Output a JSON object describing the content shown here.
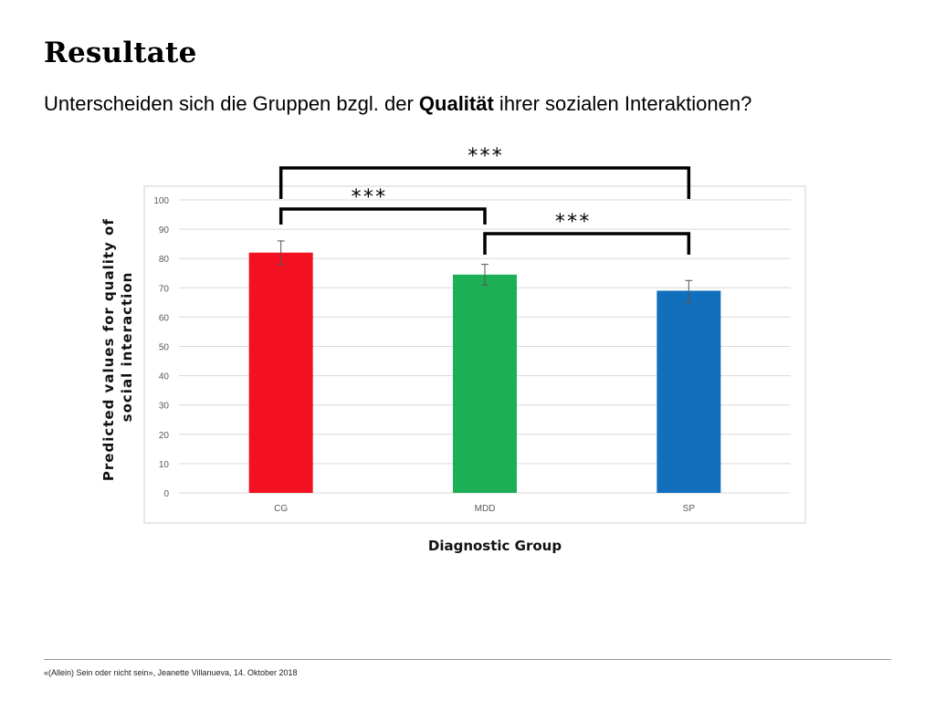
{
  "slide": {
    "title": "Resultate",
    "subtitle_prefix": "Unterscheiden sich die Gruppen bzgl. der ",
    "subtitle_bold": "Qualität",
    "subtitle_suffix": " ihrer sozialen Interaktionen?",
    "footer": "«(Allein) Sein oder nicht sein», Jeanette Villanueva, 14. Oktober 2018"
  },
  "chart_data": {
    "type": "bar",
    "title": "",
    "xlabel": "Diagnostic Group",
    "ylabel_lines": [
      "Predicted values for quality of",
      "social interaction"
    ],
    "categories": [
      "CG",
      "MDD",
      "SP"
    ],
    "values": [
      82,
      74.5,
      69
    ],
    "error_upper": [
      86,
      78,
      72.5
    ],
    "error_lower": [
      78,
      71,
      65
    ],
    "colors": [
      "#f21021",
      "#1caf55",
      "#116fbc"
    ],
    "ylim": [
      0,
      100
    ],
    "yticks": [
      0,
      10,
      20,
      30,
      40,
      50,
      60,
      70,
      80,
      90,
      100
    ],
    "grid": true,
    "significance": [
      {
        "from": 0,
        "to": 2,
        "label": "***"
      },
      {
        "from": 0,
        "to": 1,
        "label": "***"
      },
      {
        "from": 1,
        "to": 2,
        "label": "***"
      }
    ]
  }
}
